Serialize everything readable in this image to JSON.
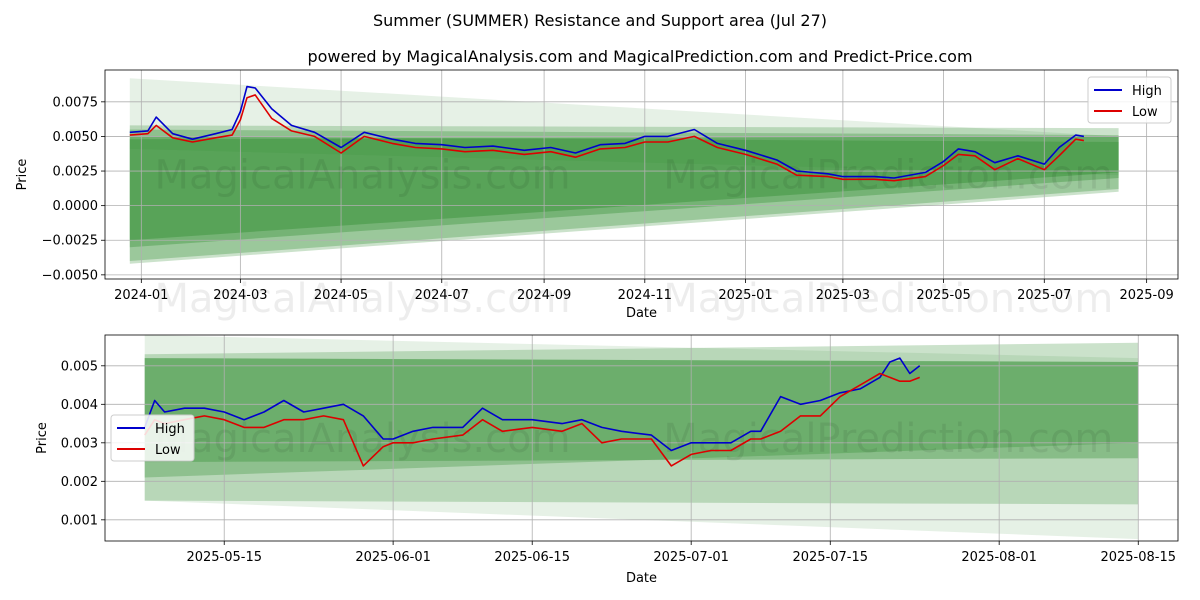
{
  "title": "Summer (SUMMER) Resistance and Support area (Jul 27)",
  "subtitle": "powered by MagicalAnalysis.com and MagicalPrediction.com and Predict-Price.com",
  "watermarks": [
    "MagicalAnalysis.com",
    "MagicalPrediction.com"
  ],
  "colors": {
    "high": "#0000cc",
    "low": "#dd0000",
    "band": "#2e8b2e",
    "grid": "#b0b0b0"
  },
  "chart_data": [
    {
      "type": "line",
      "xlabel": "Date",
      "ylabel": "Price",
      "x_ticks": [
        "2024-01",
        "2024-03",
        "2024-05",
        "2024-07",
        "2024-09",
        "2024-11",
        "2025-01",
        "2025-03",
        "2025-05",
        "2025-07",
        "2025-09"
      ],
      "y_ticks": [
        "−0.0050",
        "−0.0025",
        "0.0000",
        "0.0025",
        "0.0050",
        "0.0075"
      ],
      "xlim": [
        "2023-12-10",
        "2025-09-20"
      ],
      "ylim": [
        -0.0053,
        0.0098
      ],
      "grid": true,
      "legend": "top-right",
      "legend_labels": [
        "High",
        "Low"
      ],
      "bands": [
        {
          "x": [
            "2023-12-25",
            "2025-08-15"
          ],
          "upper": [
            0.0092,
            0.005
          ],
          "lower": [
            0.0041,
            0.0022
          ]
        },
        {
          "x": [
            "2023-12-25",
            "2025-08-15"
          ],
          "upper": [
            0.0058,
            0.0056
          ],
          "lower": [
            -0.0042,
            0.001
          ]
        },
        {
          "x": [
            "2023-12-25",
            "2025-08-15"
          ],
          "upper": [
            0.0055,
            0.0051
          ],
          "lower": [
            -0.004,
            0.0012
          ]
        },
        {
          "x": [
            "2023-12-25",
            "2025-08-15"
          ],
          "upper": [
            0.005,
            0.0046
          ],
          "lower": [
            -0.003,
            0.002
          ]
        },
        {
          "x": [
            "2023-12-25",
            "2025-08-15"
          ],
          "upper": [
            0.0048,
            0.005
          ],
          "lower": [
            -0.0025,
            0.0024
          ]
        }
      ],
      "series": [
        {
          "name": "High",
          "x": [
            "2023-12-25",
            "2024-01-05",
            "2024-01-10",
            "2024-01-20",
            "2024-02-01",
            "2024-02-15",
            "2024-02-25",
            "2024-03-01",
            "2024-03-05",
            "2024-03-10",
            "2024-03-20",
            "2024-04-01",
            "2024-04-15",
            "2024-05-01",
            "2024-05-15",
            "2024-06-01",
            "2024-06-15",
            "2024-07-01",
            "2024-07-15",
            "2024-08-01",
            "2024-08-20",
            "2024-09-05",
            "2024-09-20",
            "2024-10-05",
            "2024-10-20",
            "2024-11-01",
            "2024-11-15",
            "2024-12-01",
            "2024-12-15",
            "2025-01-01",
            "2025-01-20",
            "2025-02-01",
            "2025-02-20",
            "2025-03-01",
            "2025-03-20",
            "2025-04-01",
            "2025-04-20",
            "2025-05-01",
            "2025-05-10",
            "2025-05-20",
            "2025-06-01",
            "2025-06-15",
            "2025-07-01",
            "2025-07-10",
            "2025-07-20",
            "2025-07-25"
          ],
          "values": [
            0.0053,
            0.0054,
            0.0064,
            0.0052,
            0.0048,
            0.0052,
            0.0055,
            0.0068,
            0.0086,
            0.0085,
            0.007,
            0.0058,
            0.0053,
            0.0042,
            0.0053,
            0.0048,
            0.0045,
            0.0044,
            0.0042,
            0.0043,
            0.004,
            0.0042,
            0.0038,
            0.0044,
            0.0045,
            0.005,
            0.005,
            0.0055,
            0.0045,
            0.004,
            0.0033,
            0.0025,
            0.0023,
            0.0021,
            0.0021,
            0.002,
            0.0024,
            0.0032,
            0.0041,
            0.0039,
            0.0031,
            0.0036,
            0.003,
            0.0042,
            0.0051,
            0.005
          ]
        },
        {
          "name": "Low",
          "x": [
            "2023-12-25",
            "2024-01-05",
            "2024-01-10",
            "2024-01-20",
            "2024-02-01",
            "2024-02-15",
            "2024-02-25",
            "2024-03-01",
            "2024-03-05",
            "2024-03-10",
            "2024-03-20",
            "2024-04-01",
            "2024-04-15",
            "2024-05-01",
            "2024-05-15",
            "2024-06-01",
            "2024-06-15",
            "2024-07-01",
            "2024-07-15",
            "2024-08-01",
            "2024-08-20",
            "2024-09-05",
            "2024-09-20",
            "2024-10-05",
            "2024-10-20",
            "2024-11-01",
            "2024-11-15",
            "2024-12-01",
            "2024-12-15",
            "2025-01-01",
            "2025-01-20",
            "2025-02-01",
            "2025-02-20",
            "2025-03-01",
            "2025-03-20",
            "2025-04-01",
            "2025-04-20",
            "2025-05-01",
            "2025-05-10",
            "2025-05-20",
            "2025-06-01",
            "2025-06-15",
            "2025-07-01",
            "2025-07-10",
            "2025-07-20",
            "2025-07-25"
          ],
          "values": [
            0.0051,
            0.0052,
            0.0058,
            0.0049,
            0.0046,
            0.0049,
            0.0051,
            0.0062,
            0.0078,
            0.008,
            0.0063,
            0.0054,
            0.005,
            0.0038,
            0.005,
            0.0045,
            0.0042,
            0.0041,
            0.0039,
            0.004,
            0.0037,
            0.0039,
            0.0035,
            0.0041,
            0.0042,
            0.0046,
            0.0046,
            0.005,
            0.0042,
            0.0037,
            0.003,
            0.0022,
            0.0021,
            0.0019,
            0.0019,
            0.0018,
            0.0021,
            0.0029,
            0.0037,
            0.0036,
            0.0026,
            0.0034,
            0.0026,
            0.0036,
            0.0048,
            0.0047
          ]
        }
      ]
    },
    {
      "type": "line",
      "xlabel": "Date",
      "ylabel": "Price",
      "x_ticks": [
        "2025-05-15",
        "2025-06-01",
        "2025-06-15",
        "2025-07-01",
        "2025-07-15",
        "2025-08-01",
        "2025-08-15"
      ],
      "y_ticks": [
        "0.001",
        "0.002",
        "0.003",
        "0.004",
        "0.005"
      ],
      "xlim": [
        "2025-05-03",
        "2025-08-19"
      ],
      "ylim": [
        0.00045,
        0.0058
      ],
      "grid": true,
      "legend": "center-left",
      "legend_labels": [
        "High",
        "Low"
      ],
      "bands": [
        {
          "x": [
            "2025-05-07",
            "2025-08-15"
          ],
          "upper": [
            0.0058,
            0.0052
          ],
          "lower": [
            0.0015,
            0.0005
          ]
        },
        {
          "x": [
            "2025-05-07",
            "2025-08-15"
          ],
          "upper": [
            0.0053,
            0.0056
          ],
          "lower": [
            0.0015,
            0.0014
          ]
        },
        {
          "x": [
            "2025-05-07",
            "2025-08-15"
          ],
          "upper": [
            0.0052,
            0.0051
          ],
          "lower": [
            0.0021,
            0.003
          ]
        },
        {
          "x": [
            "2025-05-07",
            "2025-08-15"
          ],
          "upper": [
            0.0052,
            0.0051
          ],
          "lower": [
            0.0025,
            0.0026
          ]
        }
      ],
      "series": [
        {
          "name": "High",
          "x": [
            "2025-05-07",
            "2025-05-08",
            "2025-05-09",
            "2025-05-11",
            "2025-05-13",
            "2025-05-15",
            "2025-05-17",
            "2025-05-19",
            "2025-05-21",
            "2025-05-23",
            "2025-05-25",
            "2025-05-27",
            "2025-05-29",
            "2025-05-31",
            "2025-06-01",
            "2025-06-03",
            "2025-06-05",
            "2025-06-08",
            "2025-06-10",
            "2025-06-12",
            "2025-06-15",
            "2025-06-18",
            "2025-06-20",
            "2025-06-22",
            "2025-06-24",
            "2025-06-27",
            "2025-06-29",
            "2025-07-01",
            "2025-07-03",
            "2025-07-05",
            "2025-07-07",
            "2025-07-08",
            "2025-07-10",
            "2025-07-12",
            "2025-07-14",
            "2025-07-16",
            "2025-07-18",
            "2025-07-20",
            "2025-07-21",
            "2025-07-22",
            "2025-07-23",
            "2025-07-24"
          ],
          "values": [
            0.0034,
            0.0041,
            0.0038,
            0.0039,
            0.0039,
            0.0038,
            0.0036,
            0.0038,
            0.0041,
            0.0038,
            0.0039,
            0.004,
            0.0037,
            0.0031,
            0.0031,
            0.0033,
            0.0034,
            0.0034,
            0.0039,
            0.0036,
            0.0036,
            0.0035,
            0.0036,
            0.0034,
            0.0033,
            0.0032,
            0.0028,
            0.003,
            0.003,
            0.003,
            0.0033,
            0.0033,
            0.0042,
            0.004,
            0.0041,
            0.0043,
            0.0044,
            0.0047,
            0.0051,
            0.0052,
            0.0048,
            0.005
          ]
        },
        {
          "name": "Low",
          "x": [
            "2025-05-07",
            "2025-05-08",
            "2025-05-09",
            "2025-05-11",
            "2025-05-13",
            "2025-05-15",
            "2025-05-17",
            "2025-05-19",
            "2025-05-21",
            "2025-05-23",
            "2025-05-25",
            "2025-05-27",
            "2025-05-29",
            "2025-05-31",
            "2025-06-01",
            "2025-06-03",
            "2025-06-05",
            "2025-06-08",
            "2025-06-10",
            "2025-06-12",
            "2025-06-15",
            "2025-06-18",
            "2025-06-20",
            "2025-06-22",
            "2025-06-24",
            "2025-06-27",
            "2025-06-29",
            "2025-07-01",
            "2025-07-03",
            "2025-07-05",
            "2025-07-07",
            "2025-07-08",
            "2025-07-10",
            "2025-07-12",
            "2025-07-14",
            "2025-07-16",
            "2025-07-18",
            "2025-07-20",
            "2025-07-21",
            "2025-07-22",
            "2025-07-23",
            "2025-07-24"
          ],
          "values": [
            0.0032,
            0.0036,
            0.0035,
            0.0036,
            0.0037,
            0.0036,
            0.0034,
            0.0034,
            0.0036,
            0.0036,
            0.0037,
            0.0036,
            0.0024,
            0.0029,
            0.003,
            0.003,
            0.0031,
            0.0032,
            0.0036,
            0.0033,
            0.0034,
            0.0033,
            0.0035,
            0.003,
            0.0031,
            0.0031,
            0.0024,
            0.0027,
            0.0028,
            0.0028,
            0.0031,
            0.0031,
            0.0033,
            0.0037,
            0.0037,
            0.0042,
            0.0045,
            0.0048,
            0.0047,
            0.0046,
            0.0046,
            0.0047
          ]
        }
      ]
    }
  ]
}
